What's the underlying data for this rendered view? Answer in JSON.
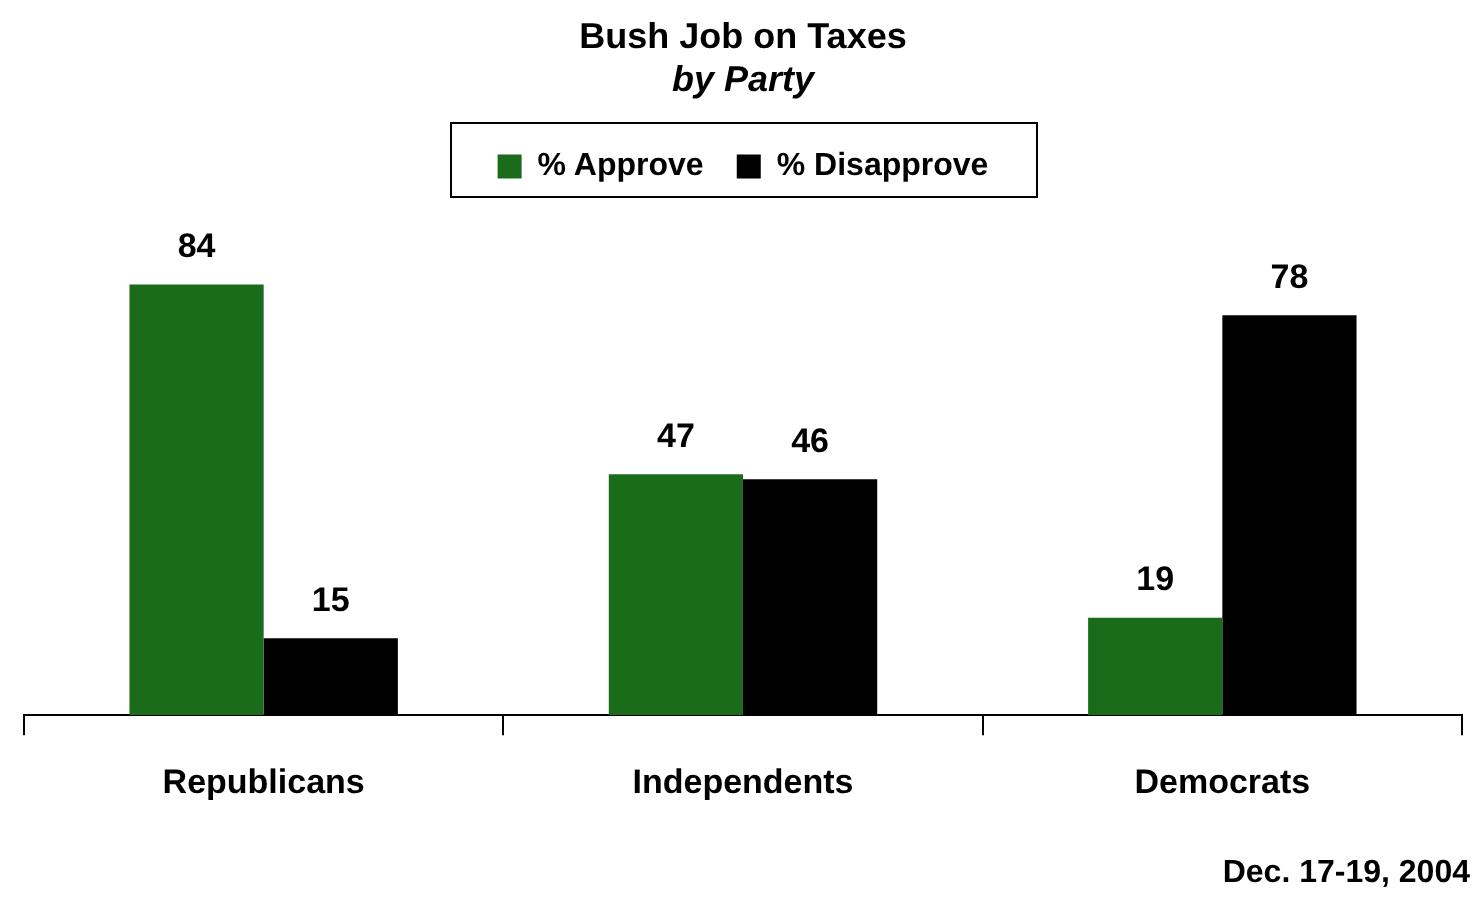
{
  "chart_data": {
    "type": "bar",
    "title": "Bush Job on Taxes",
    "subtitle": "by Party",
    "categories": [
      "Republicans",
      "Independents",
      "Democrats"
    ],
    "series": [
      {
        "name": "% Approve",
        "color": "#1a6b1a",
        "values": [
          84,
          47,
          19
        ]
      },
      {
        "name": "% Disapprove",
        "color": "#000000",
        "values": [
          15,
          46,
          78
        ]
      }
    ],
    "data_labels": true,
    "legend": "top",
    "grid": false,
    "annotations": [
      "Dec. 17-19, 2004"
    ]
  }
}
